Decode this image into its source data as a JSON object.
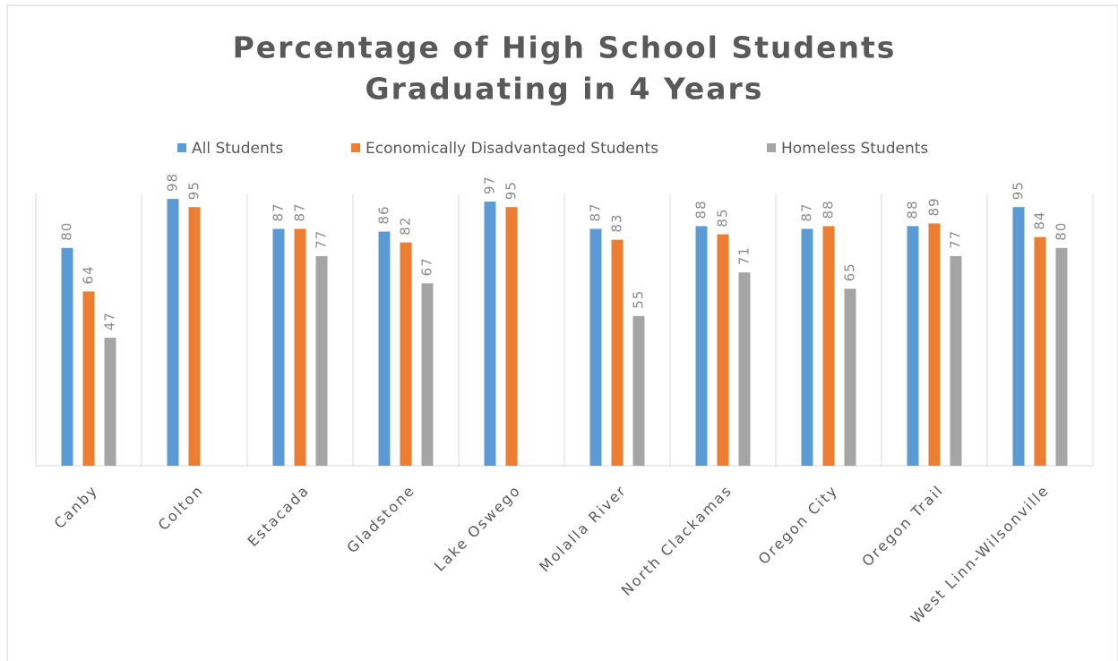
{
  "chart_data": {
    "type": "bar",
    "title": [
      "Percentage of High School Students",
      "Graduating in 4 Years"
    ],
    "categories": [
      "Canby",
      "Colton",
      "Estacada",
      "Gladstone",
      "Lake Oswego",
      "Molalla River",
      "North Clackamas",
      "Oregon City",
      "Oregon Trail",
      "West Linn-Wilsonville"
    ],
    "series": [
      {
        "name": "All Students",
        "color": "#5b9bd5",
        "values": [
          80,
          98,
          87,
          86,
          97,
          87,
          88,
          87,
          88,
          95
        ]
      },
      {
        "name": "Economically Disadvantaged Students",
        "color": "#ed7d31",
        "values": [
          64,
          95,
          87,
          82,
          95,
          83,
          85,
          88,
          89,
          84
        ]
      },
      {
        "name": "Homeless Students",
        "color": "#a5a5a5",
        "values": [
          47,
          null,
          77,
          67,
          null,
          55,
          71,
          65,
          77,
          80
        ]
      }
    ],
    "ylim": [
      0,
      100
    ]
  }
}
